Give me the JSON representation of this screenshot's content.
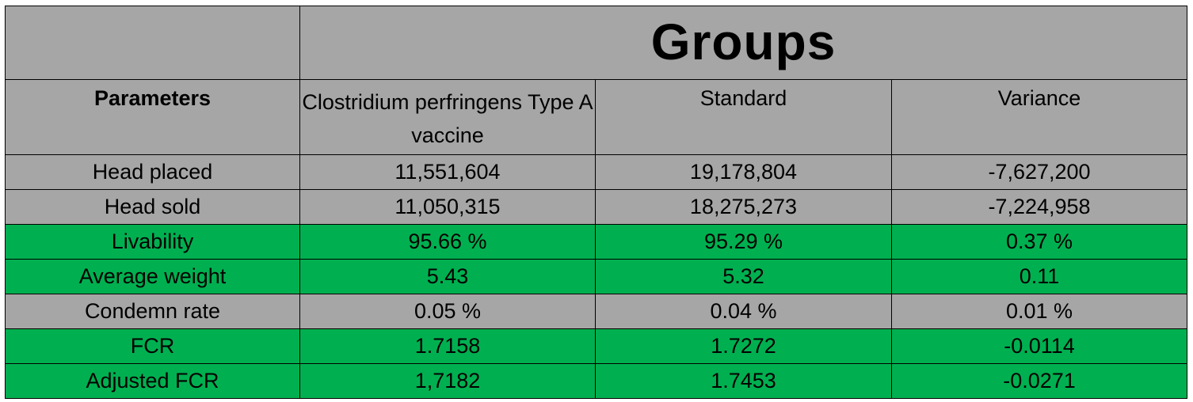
{
  "table": {
    "title": "Groups",
    "headers": {
      "parameters": "Parameters",
      "vaccine": "Clostridium perfringens Type A vaccine",
      "standard": "Standard",
      "variance": "Variance"
    },
    "row_colors": {
      "gray": "#a6a6a6",
      "green": "#00b050"
    },
    "rows": [
      {
        "parameter": "Head placed",
        "vaccine": "11,551,604",
        "standard": "19,178,804",
        "variance": "-7,627,200",
        "highlight": "gray"
      },
      {
        "parameter": "Head sold",
        "vaccine": "11,050,315",
        "standard": "18,275,273",
        "variance": "-7,224,958",
        "highlight": "gray"
      },
      {
        "parameter": "Livability",
        "vaccine": "95.66 %",
        "standard": "95.29 %",
        "variance": "0.37 %",
        "highlight": "green"
      },
      {
        "parameter": "Average weight",
        "vaccine": "5.43",
        "standard": "5.32",
        "variance": "0.11",
        "highlight": "green"
      },
      {
        "parameter": "Condemn rate",
        "vaccine": "0.05 %",
        "standard": "0.04 %",
        "variance": "0.01 %",
        "highlight": "gray"
      },
      {
        "parameter": "FCR",
        "vaccine": "1.7158",
        "standard": "1.7272",
        "variance": "-0.0114",
        "highlight": "green"
      },
      {
        "parameter": "Adjusted FCR",
        "vaccine": "1,7182",
        "standard": "1.7453",
        "variance": "-0.0271",
        "highlight": "green"
      }
    ]
  }
}
